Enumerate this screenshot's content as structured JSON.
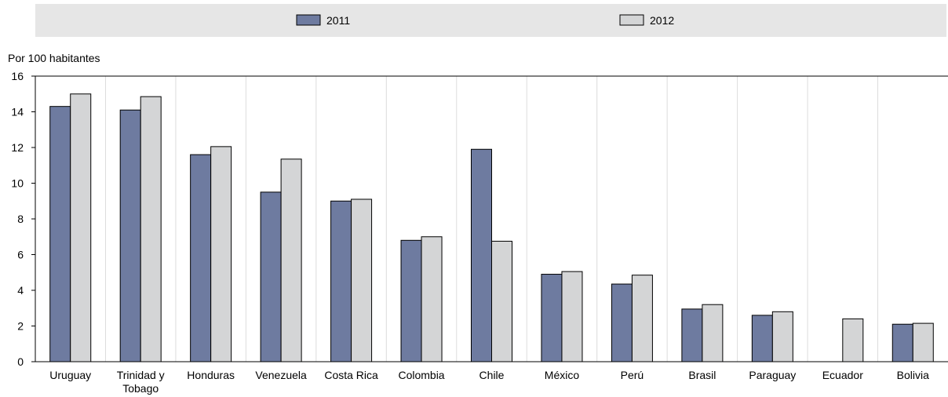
{
  "chart_data": {
    "type": "bar",
    "ylabel": "Por 100 habitantes",
    "ylim": [
      0,
      16
    ],
    "yticks": [
      0,
      2,
      4,
      6,
      8,
      10,
      12,
      14,
      16
    ],
    "grid": "vertical",
    "legend_position": "top",
    "categories": [
      [
        "Uruguay"
      ],
      [
        "Trinidad y",
        "Tobago"
      ],
      [
        "Honduras"
      ],
      [
        "Venezuela"
      ],
      [
        "Costa Rica"
      ],
      [
        "Colombia"
      ],
      [
        "Chile"
      ],
      [
        "México"
      ],
      [
        "Perú"
      ],
      [
        "Brasil"
      ],
      [
        "Paraguay"
      ],
      [
        "Ecuador"
      ],
      [
        "Bolivia"
      ]
    ],
    "series": [
      {
        "name": "2011",
        "color": "#6e7ba0",
        "values": [
          14.3,
          14.1,
          11.6,
          9.5,
          9.0,
          6.8,
          11.9,
          4.9,
          4.35,
          2.95,
          2.6,
          null,
          2.1
        ]
      },
      {
        "name": "2012",
        "color": "#d4d5d6",
        "values": [
          15.0,
          14.85,
          12.05,
          11.35,
          9.1,
          7.0,
          6.75,
          5.05,
          4.85,
          3.2,
          2.8,
          2.4,
          2.15
        ]
      }
    ]
  }
}
